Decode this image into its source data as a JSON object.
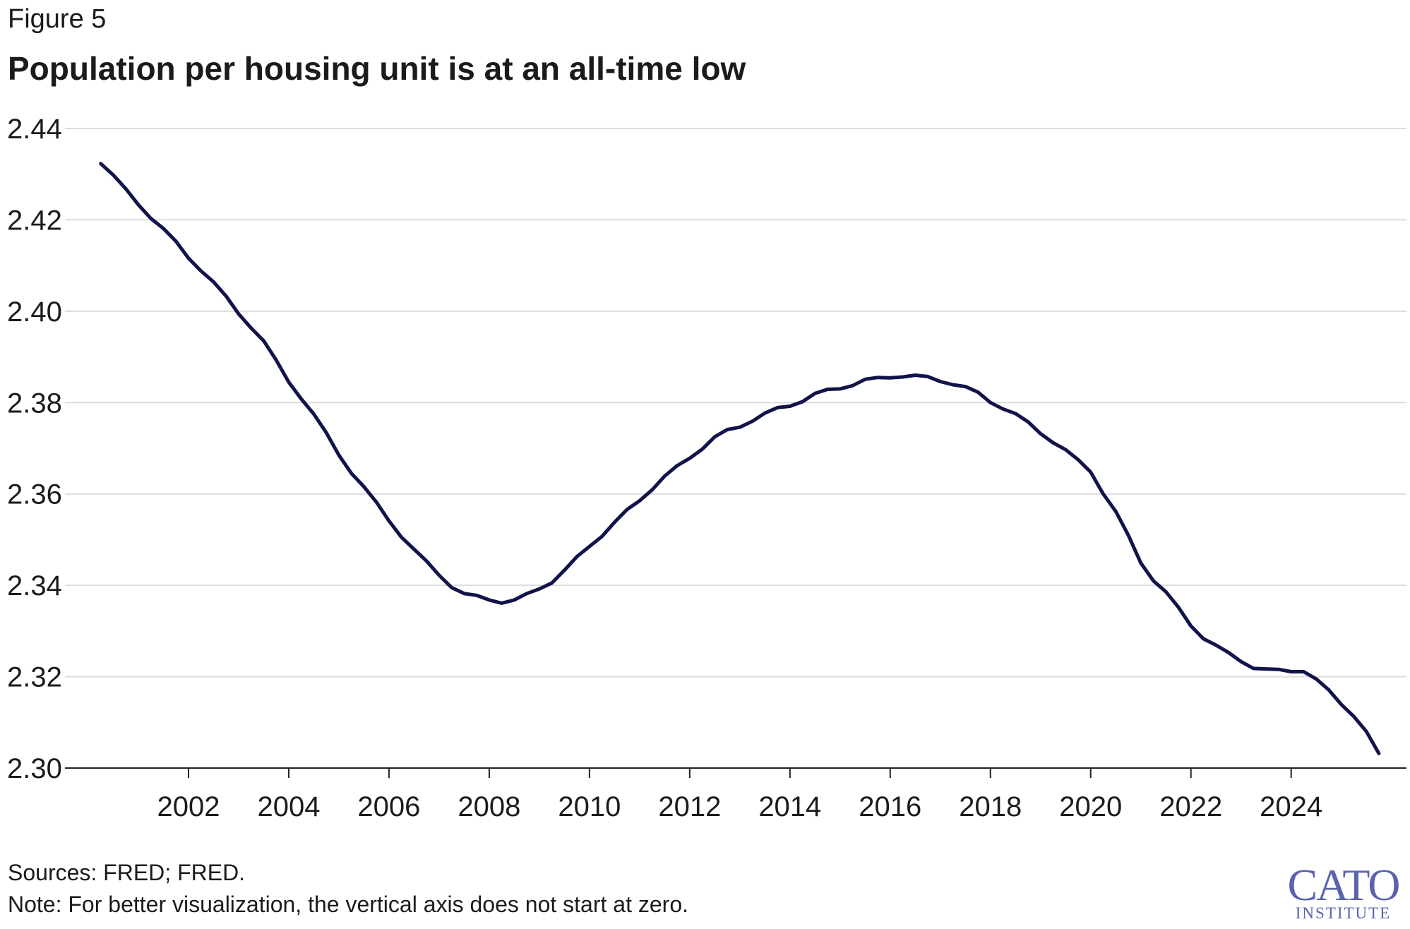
{
  "figure_label": "Figure 5",
  "title": "Population per housing unit is at an all-time low",
  "sources": "Sources: FRED; FRED.",
  "note": "Note: For better visualization, the vertical axis does not start at zero.",
  "logo": {
    "main": "CATO",
    "sub": "INSTITUTE"
  },
  "colors": {
    "line": "#11134a",
    "grid": "#dcdcdc",
    "axis": "#222222",
    "logo": "#5b63ae",
    "text": "#1b1b1b"
  },
  "chart_data": {
    "type": "line",
    "title": "Population per housing unit is at an all-time low",
    "xlabel": "",
    "ylabel": "",
    "xlim": [
      2000,
      2026
    ],
    "ylim": [
      2.3,
      2.44
    ],
    "grid": true,
    "legend": "none",
    "x_ticks": [
      2002,
      2004,
      2006,
      2008,
      2010,
      2012,
      2014,
      2016,
      2018,
      2020,
      2022,
      2024
    ],
    "x_tick_labels": [
      "2002",
      "2004",
      "2006",
      "2008",
      "2010",
      "2012",
      "2014",
      "2016",
      "2018",
      "2020",
      "2022",
      "2024"
    ],
    "y_ticks": [
      2.3,
      2.32,
      2.34,
      2.36,
      2.38,
      2.4,
      2.42,
      2.44
    ],
    "y_tick_labels": [
      "2.30",
      "2.32",
      "2.34",
      "2.36",
      "2.38",
      "2.40",
      "2.42",
      "2.44"
    ],
    "series": [
      {
        "x": [
          2000.25,
          2000.5,
          2000.75,
          2001.0,
          2001.25,
          2001.5,
          2001.75,
          2002.0,
          2002.25,
          2002.5,
          2002.75,
          2003.0,
          2003.25,
          2003.5,
          2003.75,
          2004.0,
          2004.25,
          2004.5,
          2004.75,
          2005.0,
          2005.25,
          2005.5,
          2005.75,
          2006.0,
          2006.25,
          2006.5,
          2006.75,
          2007.0,
          2007.25,
          2007.5,
          2007.75,
          2008.0,
          2008.25,
          2008.5,
          2008.75,
          2009.0,
          2009.25,
          2009.5,
          2009.75,
          2010.0,
          2010.25,
          2010.5,
          2010.75,
          2011.0,
          2011.25,
          2011.5,
          2011.75,
          2012.0,
          2012.25,
          2012.5,
          2012.75,
          2013.0,
          2013.25,
          2013.5,
          2013.75,
          2014.0,
          2014.25,
          2014.5,
          2014.75,
          2015.0,
          2015.25,
          2015.5,
          2015.75,
          2016.0,
          2016.25,
          2016.5,
          2016.75,
          2017.0,
          2017.25,
          2017.5,
          2017.75,
          2018.0,
          2018.25,
          2018.5,
          2018.75,
          2019.0,
          2019.25,
          2019.5,
          2019.75,
          2020.0,
          2020.25,
          2020.5,
          2020.75,
          2021.0,
          2021.25,
          2021.5,
          2021.75,
          2022.0,
          2022.25,
          2022.5,
          2022.75,
          2023.0,
          2023.25,
          2023.5,
          2023.75,
          2024.0,
          2024.25,
          2024.5,
          2024.75,
          2025.0,
          2025.25,
          2025.5,
          2025.75
        ],
        "y": [
          2.4323,
          2.4298,
          2.4268,
          2.4233,
          2.4203,
          2.4181,
          2.4153,
          2.4116,
          2.4088,
          2.4064,
          2.4033,
          2.3994,
          2.3963,
          2.3935,
          2.3893,
          2.3845,
          2.3808,
          2.3775,
          2.3734,
          2.3685,
          2.3645,
          2.3616,
          2.3582,
          2.3541,
          2.3505,
          2.3479,
          2.3453,
          2.3422,
          2.3395,
          2.3382,
          2.3378,
          2.3368,
          2.3361,
          2.3368,
          2.3382,
          2.3392,
          2.3405,
          2.3433,
          2.3463,
          2.3485,
          2.3507,
          2.3538,
          2.3566,
          2.3585,
          2.3609,
          2.3639,
          2.3662,
          2.3678,
          2.3698,
          2.3725,
          2.3741,
          2.3746,
          2.3759,
          2.3777,
          2.3789,
          2.3792,
          2.3802,
          2.382,
          2.3829,
          2.383,
          2.3837,
          2.3851,
          2.3855,
          2.3854,
          2.3856,
          2.386,
          2.3857,
          2.3846,
          2.3839,
          2.3835,
          2.3823,
          2.38,
          2.3786,
          2.3776,
          2.3758,
          2.3732,
          2.3712,
          2.3697,
          2.3675,
          2.3648,
          2.36,
          2.3562,
          2.351,
          2.3449,
          2.341,
          2.3386,
          2.3352,
          2.3311,
          2.3283,
          2.3269,
          2.3253,
          2.3233,
          2.3218,
          2.3217,
          2.3216,
          2.3211,
          2.3211,
          2.3195,
          2.3171,
          2.3139,
          2.3113,
          2.308,
          2.3032
        ]
      }
    ]
  }
}
